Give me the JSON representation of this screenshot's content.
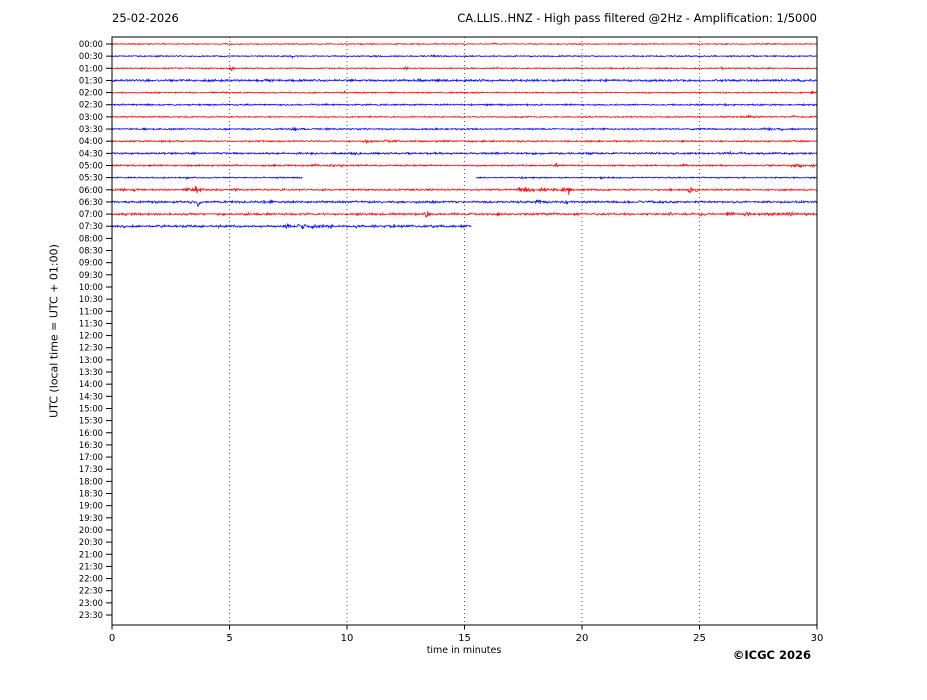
{
  "page": {
    "date": "25-02-2026",
    "title": "CA.LLIS..HNZ - High pass filtered @2Hz - Amplification: 1/5000",
    "copyright": "©ICGC 2026"
  },
  "chart_data": {
    "type": "line",
    "variant": "helicorder_day_plot_seismogram",
    "title": "CA.LLIS..HNZ - High pass filtered @2Hz - Amplification: 1/5000",
    "date_label": "25-02-2026",
    "xlabel": "time in minutes",
    "ylabel": "UTC (local time = UTC + 01:00)",
    "xlim": [
      0,
      30
    ],
    "x_ticks": [
      0,
      5,
      10,
      15,
      20,
      25,
      30
    ],
    "grid": "vertical dotted lines every 5 minutes",
    "minutes_per_row": 30,
    "row_labels": [
      "00:00",
      "00:30",
      "01:00",
      "01:30",
      "02:00",
      "02:30",
      "03:00",
      "03:30",
      "04:00",
      "04:30",
      "05:00",
      "05:30",
      "06:00",
      "06:30",
      "07:00",
      "07:30",
      "08:00",
      "08:30",
      "09:00",
      "09:30",
      "10:00",
      "10:30",
      "11:00",
      "11:30",
      "12:00",
      "12:30",
      "13:00",
      "13:30",
      "14:00",
      "14:30",
      "15:00",
      "15:30",
      "16:00",
      "16:30",
      "17:00",
      "17:30",
      "18:00",
      "18:30",
      "19:00",
      "19:30",
      "20:00",
      "20:30",
      "21:00",
      "21:30",
      "22:00",
      "22:30",
      "23:00",
      "23:30"
    ],
    "trace_color_even_rows": "#ff0000",
    "trace_color_odd_rows": "#0000ff",
    "rows_without_data": "08:00 through 23:30 (blank)",
    "events_format": "[minute, amplitude_px, width_min, sign_bias]",
    "traces": [
      {
        "label": "00:00",
        "color": "#ff0000",
        "noise": 0.45,
        "segments": [
          [
            0,
            30
          ]
        ],
        "events": [
          [
            16.3,
            1.5,
            0.06,
            0
          ]
        ]
      },
      {
        "label": "00:30",
        "color": "#0000ff",
        "noise": 0.5,
        "segments": [
          [
            0,
            30
          ]
        ],
        "events": [
          [
            4.7,
            1.2,
            0.06,
            0
          ],
          [
            7.7,
            2.0,
            0.06,
            0
          ],
          [
            13.7,
            1.5,
            0.06,
            0
          ],
          [
            26.3,
            1.5,
            0.06,
            0
          ]
        ]
      },
      {
        "label": "01:00",
        "color": "#ff0000",
        "noise": 0.5,
        "segments": [
          [
            0,
            30
          ]
        ],
        "events": [
          [
            5.1,
            3.0,
            0.05,
            0
          ],
          [
            9.3,
            1.2,
            0.08,
            0
          ],
          [
            12.5,
            1.8,
            0.06,
            0
          ],
          [
            16.4,
            1.8,
            0.05,
            0
          ],
          [
            26.0,
            1.5,
            0.1,
            0
          ]
        ]
      },
      {
        "label": "01:30",
        "color": "#0000ff",
        "noise": 0.85,
        "segments": [
          [
            0,
            30
          ]
        ],
        "events": [
          [
            13.1,
            1.5,
            0.08,
            0
          ],
          [
            23.2,
            1.2,
            0.1,
            0
          ]
        ]
      },
      {
        "label": "02:00",
        "color": "#ff0000",
        "noise": 0.5,
        "segments": [
          [
            0,
            30
          ]
        ],
        "events": [
          [
            9.9,
            2.8,
            0.05,
            0
          ],
          [
            29.8,
            1.8,
            0.06,
            0
          ]
        ]
      },
      {
        "label": "02:30",
        "color": "#0000ff",
        "noise": 0.6,
        "segments": [
          [
            0,
            30
          ]
        ],
        "events": [
          [
            0.4,
            1.5,
            0.06,
            0
          ],
          [
            9.1,
            1.2,
            0.06,
            0
          ],
          [
            28.2,
            1.2,
            0.06,
            0
          ]
        ]
      },
      {
        "label": "03:00",
        "color": "#ff0000",
        "noise": 0.5,
        "segments": [
          [
            0,
            30
          ]
        ],
        "events": [
          [
            27.1,
            1.3,
            0.25,
            0
          ],
          [
            29.0,
            1.3,
            0.12,
            0
          ]
        ]
      },
      {
        "label": "03:30",
        "color": "#0000ff",
        "noise": 0.6,
        "segments": [
          [
            0,
            30
          ]
        ],
        "events": [
          [
            1.4,
            2.2,
            0.05,
            0
          ],
          [
            7.8,
            1.8,
            0.12,
            0
          ],
          [
            9.2,
            1.4,
            0.08,
            0
          ],
          [
            13.8,
            2.0,
            0.06,
            0
          ],
          [
            27.9,
            1.8,
            0.15,
            0
          ],
          [
            28.5,
            1.5,
            0.08,
            0
          ]
        ]
      },
      {
        "label": "04:00",
        "color": "#ff0000",
        "noise": 0.6,
        "segments": [
          [
            0,
            30
          ]
        ],
        "events": [
          [
            6.5,
            1.4,
            0.08,
            0
          ],
          [
            10.9,
            1.6,
            0.2,
            0
          ],
          [
            11.7,
            1.6,
            0.15,
            0
          ],
          [
            12.4,
            1.4,
            0.1,
            0
          ],
          [
            28.0,
            1.4,
            0.08,
            0
          ]
        ]
      },
      {
        "label": "04:30",
        "color": "#0000ff",
        "noise": 0.75,
        "segments": [
          [
            0,
            30
          ]
        ],
        "events": [
          [
            10.3,
            1.5,
            0.15,
            0
          ],
          [
            26.3,
            1.3,
            0.08,
            0
          ]
        ]
      },
      {
        "label": "05:00",
        "color": "#ff0000",
        "noise": 0.6,
        "segments": [
          [
            0,
            30
          ]
        ],
        "events": [
          [
            6.9,
            2.2,
            0.05,
            0
          ],
          [
            8.7,
            1.8,
            0.12,
            0
          ],
          [
            9.3,
            1.8,
            0.12,
            0
          ],
          [
            9.8,
            1.9,
            0.1,
            0
          ],
          [
            18.9,
            2.4,
            0.06,
            0
          ],
          [
            24.4,
            1.8,
            0.12,
            0
          ],
          [
            29.2,
            2.2,
            0.2,
            0
          ],
          [
            29.8,
            1.8,
            0.08,
            0
          ]
        ]
      },
      {
        "label": "05:30",
        "color": "#0000ff",
        "noise": 0.5,
        "segments": [
          [
            0,
            8.1
          ],
          [
            15.5,
            30
          ]
        ],
        "events": [
          [
            3.2,
            1.6,
            0.05,
            0
          ],
          [
            17.5,
            1.8,
            0.08,
            0
          ],
          [
            20.9,
            1.4,
            0.08,
            0
          ]
        ]
      },
      {
        "label": "06:00",
        "color": "#ff0000",
        "noise": 0.65,
        "segments": [
          [
            0,
            30
          ]
        ],
        "events": [
          [
            0.5,
            1.6,
            0.06,
            0
          ],
          [
            0.9,
            2.0,
            0.06,
            0
          ],
          [
            3.25,
            2.8,
            0.08,
            0
          ],
          [
            3.45,
            3.2,
            0.06,
            0
          ],
          [
            3.6,
            5.5,
            0.05,
            0
          ],
          [
            3.8,
            2.6,
            0.06,
            0
          ],
          [
            5.3,
            1.5,
            0.12,
            0
          ],
          [
            7.3,
            1.6,
            0.06,
            0
          ],
          [
            9.0,
            1.5,
            0.06,
            0
          ],
          [
            17.35,
            4.0,
            0.08,
            0
          ],
          [
            17.6,
            3.2,
            0.1,
            0
          ],
          [
            17.9,
            2.6,
            0.12,
            0
          ],
          [
            18.3,
            2.4,
            0.15,
            0
          ],
          [
            18.8,
            2.2,
            0.1,
            0
          ],
          [
            19.2,
            4.0,
            0.06,
            0
          ],
          [
            19.45,
            6.5,
            0.05,
            0
          ],
          [
            24.6,
            6.5,
            0.07,
            0
          ],
          [
            24.85,
            3.5,
            0.06,
            0
          ],
          [
            25.9,
            1.8,
            0.06,
            0
          ],
          [
            29.5,
            1.6,
            0.06,
            0
          ]
        ]
      },
      {
        "label": "06:30",
        "color": "#0000ff",
        "noise": 0.8,
        "segments": [
          [
            0,
            30
          ]
        ],
        "events": [
          [
            3.3,
            2.8,
            0.05,
            -0.3
          ],
          [
            3.68,
            9.5,
            0.045,
            -0.65
          ],
          [
            6.45,
            2.6,
            0.05,
            0
          ],
          [
            6.75,
            2.2,
            0.05,
            0
          ],
          [
            9.0,
            1.6,
            0.06,
            0
          ],
          [
            13.0,
            1.6,
            0.06,
            0
          ],
          [
            13.35,
            1.5,
            0.05,
            0
          ],
          [
            18.2,
            2.0,
            0.15,
            0
          ],
          [
            19.3,
            2.4,
            0.07,
            0
          ],
          [
            22.4,
            1.8,
            0.06,
            0
          ],
          [
            23.3,
            1.7,
            0.06,
            0
          ]
        ]
      },
      {
        "label": "07:00",
        "color": "#ff0000",
        "noise": 0.8,
        "segments": [
          [
            0,
            30
          ]
        ],
        "events": [
          [
            0.6,
            1.8,
            0.06,
            0
          ],
          [
            2.0,
            1.5,
            0.08,
            0
          ],
          [
            5.8,
            1.8,
            0.1,
            0
          ],
          [
            10.5,
            1.6,
            0.08,
            0
          ],
          [
            13.4,
            5.0,
            0.05,
            0
          ],
          [
            16.4,
            3.0,
            0.04,
            0
          ],
          [
            23.8,
            1.8,
            0.15,
            0
          ],
          [
            25.1,
            5.5,
            0.06,
            0
          ],
          [
            25.5,
            2.6,
            0.08,
            0
          ],
          [
            26.3,
            2.0,
            0.2,
            0
          ],
          [
            27.0,
            2.4,
            0.12,
            0
          ],
          [
            27.8,
            1.8,
            0.15,
            0
          ],
          [
            28.9,
            2.6,
            0.07,
            0
          ],
          [
            29.5,
            2.2,
            0.07,
            0
          ]
        ]
      },
      {
        "label": "07:30",
        "color": "#0000ff",
        "noise": 0.9,
        "segments": [
          [
            0,
            15.3
          ]
        ],
        "events": [
          [
            0.5,
            2.4,
            0.05,
            0
          ],
          [
            2.2,
            1.4,
            0.08,
            0
          ],
          [
            4.6,
            1.5,
            0.08,
            0
          ],
          [
            7.5,
            3.6,
            0.07,
            0
          ],
          [
            7.9,
            2.6,
            0.08,
            0
          ],
          [
            8.15,
            4.0,
            0.06,
            0
          ],
          [
            8.55,
            3.2,
            0.06,
            0
          ],
          [
            9.0,
            3.8,
            0.06,
            0
          ],
          [
            9.3,
            2.2,
            0.08,
            0
          ],
          [
            10.4,
            1.5,
            0.08,
            0
          ],
          [
            12.0,
            1.5,
            0.06,
            0
          ],
          [
            13.3,
            1.8,
            0.06,
            0
          ]
        ]
      }
    ]
  }
}
